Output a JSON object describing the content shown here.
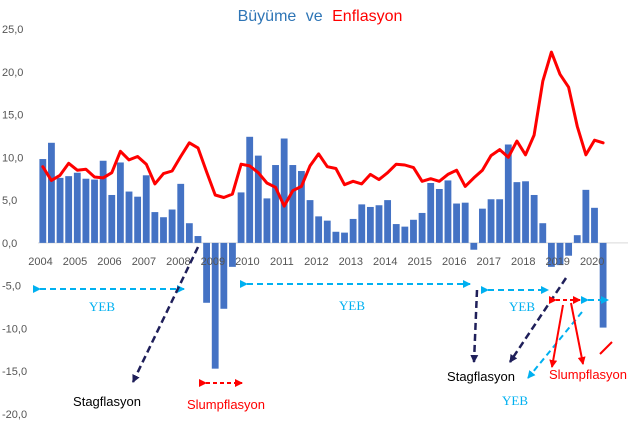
{
  "chart_data": {
    "type": "bar",
    "title": "Büyüme ve Enflasyon",
    "title_parts": {
      "growth_word": "Büyüme",
      "conjunction": "ve",
      "inflation_word": "Enflasyon"
    },
    "ylim": [
      -20,
      25
    ],
    "yticks": [
      "25,0",
      "20,0",
      "15,0",
      "10,0",
      "5,0",
      "0,0",
      "-5,0",
      "-10,0",
      "-15,0",
      "-20,0"
    ],
    "ytick_values": [
      25,
      20,
      15,
      10,
      5,
      0,
      -5,
      -10,
      -15,
      -20
    ],
    "year_labels": [
      "2004",
      "2005",
      "2006",
      "2007",
      "2008",
      "2009",
      "2010",
      "2011",
      "2012",
      "2013",
      "2014",
      "2015",
      "2016",
      "2017",
      "2018",
      "2019",
      "2020"
    ],
    "first_year": 2004,
    "periods_per_year": 4,
    "series": [
      {
        "name": "Büyüme",
        "type": "bar",
        "color": "#4472c4",
        "values": [
          9.8,
          11.7,
          7.6,
          7.8,
          8.2,
          7.5,
          7.4,
          9.6,
          5.6,
          9.4,
          6.0,
          5.4,
          7.9,
          3.6,
          3.0,
          3.9,
          6.9,
          2.3,
          0.8,
          -7.0,
          -14.7,
          -7.7,
          -2.8,
          5.9,
          12.4,
          10.2,
          5.2,
          9.1,
          12.2,
          9.1,
          8.4,
          5.0,
          3.1,
          2.6,
          1.3,
          1.2,
          2.8,
          4.5,
          4.2,
          4.4,
          5.0,
          2.2,
          1.9,
          2.7,
          3.5,
          7.0,
          6.3,
          7.3,
          4.6,
          4.7,
          -0.8,
          4.0,
          5.1,
          5.1,
          11.5,
          7.1,
          7.2,
          5.6,
          2.3,
          -2.8,
          -2.6,
          -1.5,
          0.9,
          6.2,
          4.1,
          -9.9
        ]
      },
      {
        "name": "Enflasyon",
        "type": "line",
        "color": "#ff0000",
        "values": [
          8.9,
          7.3,
          7.9,
          9.3,
          8.5,
          8.6,
          7.7,
          7.6,
          8.2,
          10.7,
          9.7,
          10.1,
          9.2,
          6.9,
          8.1,
          8.4,
          10.1,
          11.7,
          11.1,
          8.3,
          5.6,
          5.3,
          5.7,
          9.2,
          9.0,
          8.2,
          7.0,
          6.5,
          4.3,
          6.1,
          6.6,
          9.0,
          10.4,
          8.9,
          8.7,
          6.8,
          7.2,
          6.9,
          8.0,
          7.4,
          8.2,
          9.2,
          9.1,
          8.8,
          7.2,
          7.5,
          7.2,
          8.0,
          8.5,
          6.6,
          7.6,
          8.5,
          10.2,
          10.9,
          10.0,
          11.9,
          10.3,
          12.6,
          18.9,
          22.3,
          19.7,
          18.2,
          13.6,
          10.3,
          12.0,
          11.7
        ]
      }
    ],
    "annotations": {
      "yeb_label": "YEB",
      "stagflasyon_label": "Stagflasyon",
      "slumpflasyon_label": "Slumpflasyon"
    },
    "colors": {
      "bar": "#4472c4",
      "line": "#ff0000",
      "title_growth": "#2e75b6",
      "title_inflation": "#ff0000",
      "yeb_arrow": "#00b0f0",
      "stag_arrow": "#1f1f5a",
      "slump_arrow": "#ff0000"
    }
  }
}
